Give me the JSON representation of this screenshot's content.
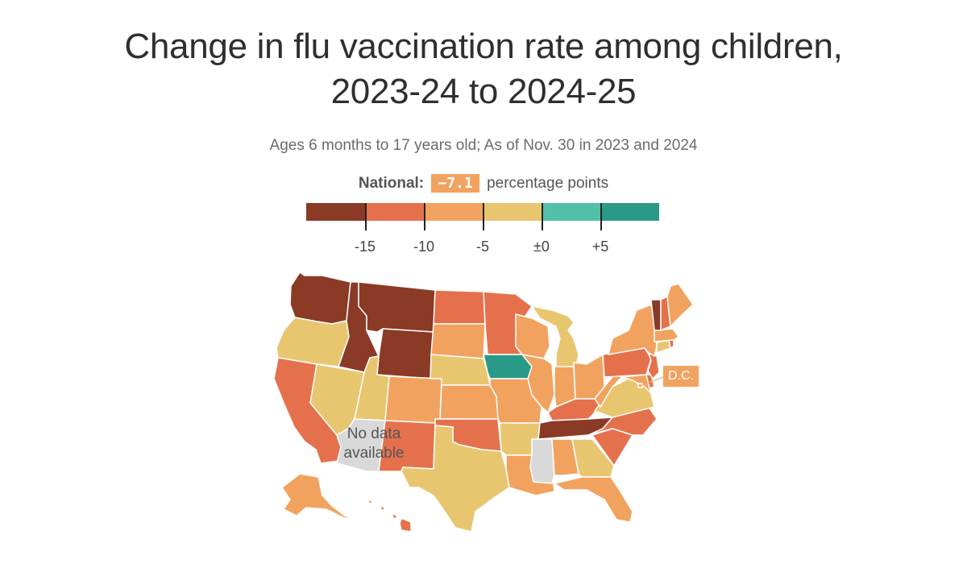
{
  "title_line1": "Change in flu vaccination rate among children,",
  "title_line2": "2023-24 to 2024-25",
  "subtitle": "Ages 6 months to 17 years old; As of Nov. 30 in 2023 and 2024",
  "national": {
    "label": "National:",
    "value": "−7.1",
    "unit": "percentage points"
  },
  "legend": {
    "bins": [
      {
        "range": "< -15",
        "color": "#8b3a26"
      },
      {
        "range": "-15 to -10",
        "color": "#e5714c"
      },
      {
        "range": "-10 to -5",
        "color": "#f2a25f"
      },
      {
        "range": "-5 to 0",
        "color": "#e8c670"
      },
      {
        "range": "0 to +5",
        "color": "#50c0a8"
      },
      {
        "range": "> +5",
        "color": "#2a9a88"
      }
    ],
    "ticks": [
      "-15",
      "-10",
      "-5",
      "±0",
      "+5"
    ]
  },
  "no_data_label_line1": "No data",
  "no_data_label_line2": "available",
  "no_data_color": "#d9d9d9",
  "dc_label": "D.C.",
  "states": [
    {
      "abbr": "WA",
      "bin": 0
    },
    {
      "abbr": "OR",
      "bin": 3
    },
    {
      "abbr": "CA",
      "bin": 1
    },
    {
      "abbr": "ID",
      "bin": 0
    },
    {
      "abbr": "NV",
      "bin": 3
    },
    {
      "abbr": "UT",
      "bin": 3
    },
    {
      "abbr": "AZ",
      "bin": null
    },
    {
      "abbr": "MT",
      "bin": 0
    },
    {
      "abbr": "WY",
      "bin": 0
    },
    {
      "abbr": "CO",
      "bin": 2
    },
    {
      "abbr": "NM",
      "bin": 1
    },
    {
      "abbr": "ND",
      "bin": 1
    },
    {
      "abbr": "SD",
      "bin": 2
    },
    {
      "abbr": "NE",
      "bin": 3
    },
    {
      "abbr": "KS",
      "bin": 2
    },
    {
      "abbr": "OK",
      "bin": 1
    },
    {
      "abbr": "TX",
      "bin": 3
    },
    {
      "abbr": "MN",
      "bin": 1
    },
    {
      "abbr": "IA",
      "bin": 5
    },
    {
      "abbr": "MO",
      "bin": 2
    },
    {
      "abbr": "AR",
      "bin": 3
    },
    {
      "abbr": "LA",
      "bin": 2
    },
    {
      "abbr": "WI",
      "bin": 2
    },
    {
      "abbr": "IL",
      "bin": 2
    },
    {
      "abbr": "MI",
      "bin": 3
    },
    {
      "abbr": "IN",
      "bin": 2
    },
    {
      "abbr": "OH",
      "bin": 2
    },
    {
      "abbr": "KY",
      "bin": 1
    },
    {
      "abbr": "TN",
      "bin": 0
    },
    {
      "abbr": "MS",
      "bin": null
    },
    {
      "abbr": "AL",
      "bin": 2
    },
    {
      "abbr": "GA",
      "bin": 3
    },
    {
      "abbr": "FL",
      "bin": 2
    },
    {
      "abbr": "SC",
      "bin": 1
    },
    {
      "abbr": "NC",
      "bin": 1
    },
    {
      "abbr": "VA",
      "bin": 3
    },
    {
      "abbr": "WV",
      "bin": 2
    },
    {
      "abbr": "PA",
      "bin": 1
    },
    {
      "abbr": "NY",
      "bin": 2
    },
    {
      "abbr": "VT",
      "bin": 0
    },
    {
      "abbr": "NH",
      "bin": 1
    },
    {
      "abbr": "ME",
      "bin": 2
    },
    {
      "abbr": "MA",
      "bin": 2
    },
    {
      "abbr": "CT",
      "bin": 3
    },
    {
      "abbr": "RI",
      "bin": 1
    },
    {
      "abbr": "NJ",
      "bin": 1
    },
    {
      "abbr": "DE",
      "bin": 1
    },
    {
      "abbr": "MD",
      "bin": 2
    },
    {
      "abbr": "DC",
      "bin": 2
    },
    {
      "abbr": "AK",
      "bin": 2
    },
    {
      "abbr": "HI",
      "bin": 1
    }
  ]
}
